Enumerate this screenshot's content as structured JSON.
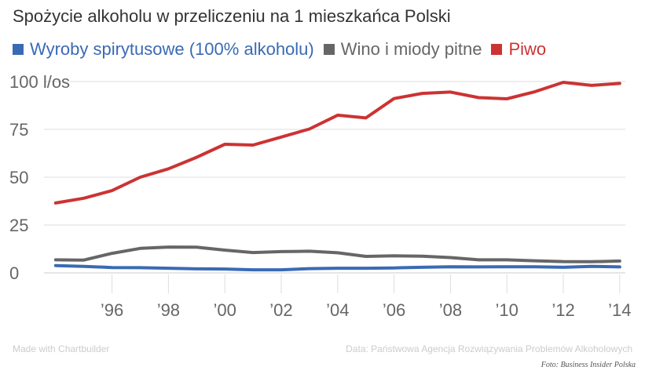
{
  "chart_data": {
    "type": "line",
    "title": "Spożycie alkoholu w przeliczeniu na 1 mieszkańca Polski",
    "ylabel_unit": "l/os",
    "ylim": [
      0,
      100
    ],
    "yticks": [
      0,
      25,
      50,
      75,
      100
    ],
    "xlim": [
      1993.7,
      2014.2
    ],
    "xticks": [
      1996,
      1998,
      2000,
      2002,
      2004,
      2006,
      2008,
      2010,
      2012,
      2014
    ],
    "xtick_labels": [
      "’96",
      "’98",
      "’00",
      "’02",
      "’04",
      "’06",
      "’08",
      "’10",
      "’12",
      "’14"
    ],
    "grid": true,
    "legend_position": "top",
    "x": [
      1994,
      1995,
      1996,
      1997,
      1998,
      1999,
      2000,
      2001,
      2002,
      2003,
      2004,
      2005,
      2006,
      2007,
      2008,
      2009,
      2010,
      2011,
      2012,
      2013,
      2014
    ],
    "series": [
      {
        "name": "Wyroby spirytusowe (100% alkoholu)",
        "color": "#3a6ab4",
        "values": [
          3.8,
          3.4,
          2.8,
          2.7,
          2.4,
          2.1,
          2.0,
          1.6,
          1.6,
          2.2,
          2.4,
          2.4,
          2.6,
          2.9,
          3.2,
          3.1,
          3.2,
          3.2,
          2.9,
          3.4,
          3.1
        ]
      },
      {
        "name": "Wino i miody pitne",
        "color": "#666666",
        "values": [
          6.8,
          6.7,
          10.2,
          12.8,
          13.5,
          13.4,
          11.9,
          10.6,
          11.1,
          11.3,
          10.5,
          8.6,
          8.9,
          8.7,
          8.0,
          6.8,
          6.8,
          6.3,
          5.9,
          5.8,
          6.2
        ]
      },
      {
        "name": "Piwo",
        "color": "#cc3333",
        "values": [
          36.5,
          39.0,
          43.0,
          50.0,
          54.4,
          60.4,
          67.2,
          66.8,
          71.0,
          75.2,
          82.4,
          81.0,
          91.1,
          93.8,
          94.5,
          91.6,
          91.0,
          94.7,
          99.6,
          98.0,
          99.0
        ]
      }
    ]
  },
  "footer": {
    "made_with": "Made with Chartbuilder",
    "source": "Data: Państwowa Agencja Rozwiązywania Problemów Alkoholowych",
    "photo_credit": "Foto: Business Insider Polska"
  }
}
